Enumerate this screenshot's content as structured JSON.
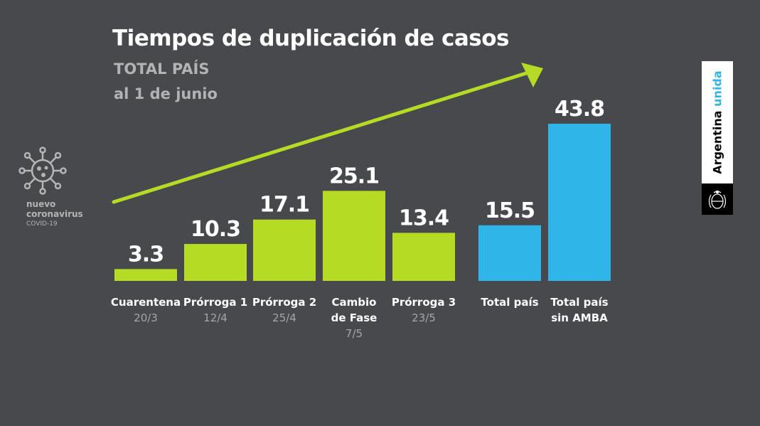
{
  "header": {
    "title": "Tiempos de duplicación de casos",
    "subtitle": "TOTAL PAÍS",
    "date": "al 1 de junio"
  },
  "brand": {
    "line1": "nuevo",
    "line2": "coronavirus",
    "line3": "COVID-19",
    "badge_part1": "Argentina ",
    "badge_part2": "unida"
  },
  "colors": {
    "green": "#b5db25",
    "blue": "#2fb5e8",
    "label": "#ffffff",
    "sublabel": "#a6a6a6"
  },
  "chart_data": {
    "type": "bar",
    "title": "Tiempos de duplicación de casos",
    "subtitle": "TOTAL PAÍS al 1 de junio",
    "categories": [
      "Cuarentena",
      "Prórroga 1",
      "Prórroga 2",
      "Cambio de Fase",
      "Prórroga 3",
      "Total país",
      "Total país sin AMBA"
    ],
    "category_lines": [
      [
        "Cuarentena"
      ],
      [
        "Prórroga 1"
      ],
      [
        "Prórroga 2"
      ],
      [
        "Cambio",
        "de Fase"
      ],
      [
        "Prórroga 3"
      ],
      [
        "Total país"
      ],
      [
        "Total país",
        "sin AMBA"
      ]
    ],
    "dates": [
      "20/3",
      "12/4",
      "25/4",
      "7/5",
      "23/5",
      "",
      ""
    ],
    "values": [
      3.3,
      10.3,
      17.1,
      25.1,
      13.4,
      15.5,
      43.8
    ],
    "value_labels": [
      "3.3",
      "10.3",
      "17.1",
      "25.1",
      "13.4",
      "15.5",
      "43.8"
    ],
    "bar_colors": [
      "green",
      "green",
      "green",
      "green",
      "green",
      "blue",
      "blue"
    ],
    "ylim": [
      0,
      43.8
    ],
    "grid": false,
    "legend": "none",
    "annotation": "rising arrow"
  }
}
